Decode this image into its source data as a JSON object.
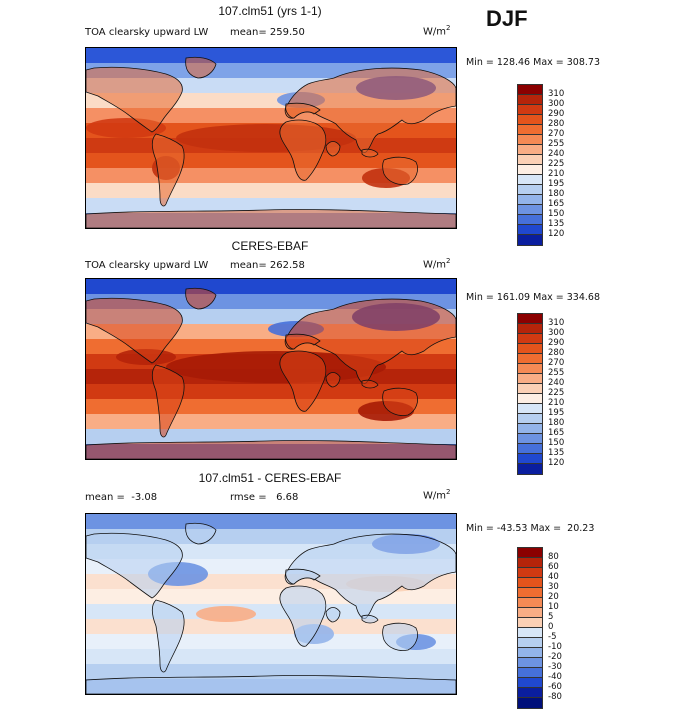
{
  "season": "DJF",
  "panels": [
    {
      "title": "107.clm51 (yrs 1-1)",
      "subtitle_left": "TOA clearsky upward LW",
      "stat_a": "mean= 259.50",
      "stat_b": "",
      "units": "W/m",
      "units_exp": "2",
      "minmax": "Min = 128.46 Max = 308.73",
      "colorbar": {
        "labels": [
          "310",
          "300",
          "290",
          "280",
          "270",
          "255",
          "240",
          "225",
          "210",
          "195",
          "180",
          "165",
          "150",
          "135",
          "120"
        ],
        "colors": [
          "#8b0000",
          "#b5240a",
          "#d13a12",
          "#e4541c",
          "#ef6d31",
          "#f58a55",
          "#f9ad85",
          "#fbd0b5",
          "#fdeee3",
          "#d7e6f7",
          "#b6cff0",
          "#93b4ea",
          "#6d93e2",
          "#4670da",
          "#2048cf",
          "#0a1e9e"
        ]
      }
    },
    {
      "title": "CERES-EBAF",
      "subtitle_left": "TOA clearsky upward LW",
      "stat_a": "mean= 262.58",
      "stat_b": "",
      "units": "W/m",
      "units_exp": "2",
      "minmax": "Min = 161.09 Max = 334.68",
      "colorbar": {
        "labels": [
          "310",
          "300",
          "290",
          "280",
          "270",
          "255",
          "240",
          "225",
          "210",
          "195",
          "180",
          "165",
          "150",
          "135",
          "120"
        ],
        "colors": [
          "#8b0000",
          "#b5240a",
          "#d13a12",
          "#e4541c",
          "#ef6d31",
          "#f58a55",
          "#f9ad85",
          "#fbd0b5",
          "#fdeee3",
          "#d7e6f7",
          "#b6cff0",
          "#93b4ea",
          "#6d93e2",
          "#4670da",
          "#2048cf",
          "#0a1e9e"
        ]
      }
    },
    {
      "title": "107.clm51 - CERES-EBAF",
      "subtitle_left": "mean =  -3.08",
      "stat_a": "rmse =   6.68",
      "stat_b": "",
      "units": "W/m",
      "units_exp": "2",
      "minmax": "Min = -43.53 Max =  20.23",
      "colorbar": {
        "labels": [
          "80",
          "60",
          "40",
          "30",
          "20",
          "10",
          "5",
          "0",
          "-5",
          "-10",
          "-20",
          "-30",
          "-40",
          "-60",
          "-80"
        ],
        "colors": [
          "#8b0000",
          "#b5240a",
          "#d13a12",
          "#e4541c",
          "#ef6d31",
          "#f58a55",
          "#f9ad85",
          "#fbd0b5",
          "#d7e6f7",
          "#b6cff0",
          "#93b4ea",
          "#6d93e2",
          "#4670da",
          "#2048cf",
          "#0a1e9e",
          "#000f7a"
        ]
      }
    }
  ]
}
